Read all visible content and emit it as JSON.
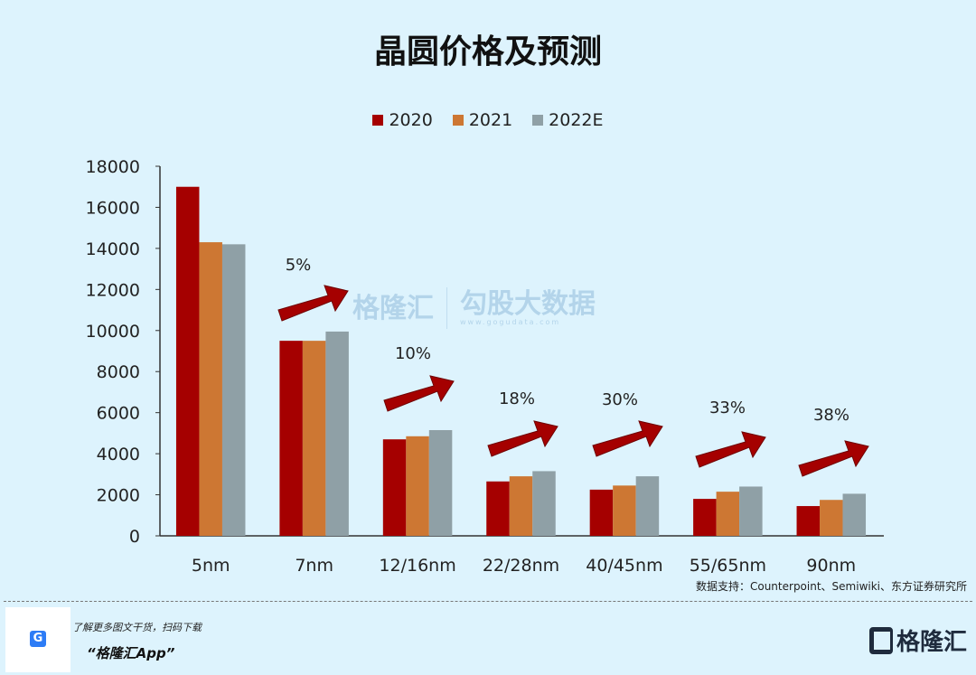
{
  "chart_data": {
    "type": "bar",
    "title": "晶圆价格及预测",
    "categories": [
      "5nm",
      "7nm",
      "12/16nm",
      "22/28nm",
      "40/45nm",
      "55/65nm",
      "90nm"
    ],
    "series": [
      {
        "name": "2020",
        "color": "#a50000",
        "values": [
          17000,
          9500,
          4700,
          2650,
          2250,
          1800,
          1450
        ]
      },
      {
        "name": "2021",
        "color": "#cd7733",
        "values": [
          14300,
          9500,
          4850,
          2900,
          2450,
          2150,
          1750
        ]
      },
      {
        "name": "2022E",
        "color": "#8fa0a6",
        "values": [
          14200,
          9950,
          5150,
          3150,
          2900,
          2400,
          2050
        ]
      }
    ],
    "ylim": [
      0,
      18000
    ],
    "yticks": [
      0,
      2000,
      4000,
      6000,
      8000,
      10000,
      12000,
      14000,
      16000,
      18000
    ],
    "xlabel": "",
    "ylabel": "",
    "legend": "top-center",
    "grid": false,
    "annotations": [
      "5%",
      "10%",
      "18%",
      "30%",
      "33%",
      "38%"
    ],
    "annotation_arrow_color": "#a50000"
  },
  "source": "数据支持：Counterpoint、Semiwiki、东方证券研究所",
  "footer": {
    "promo": "了解更多图文干货，扫码下载",
    "app": "“格隆汇App”",
    "logo": "格隆汇",
    "qr_badge": "G"
  },
  "watermark": {
    "brand": "格隆汇",
    "site": "勾股大数据",
    "url": "www.gogudata.com"
  }
}
